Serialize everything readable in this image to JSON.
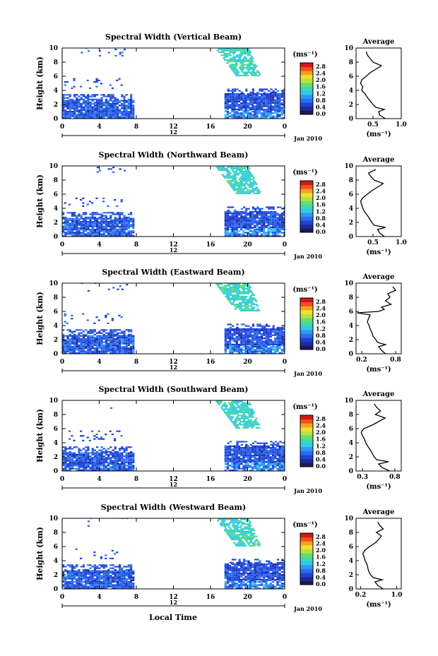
{
  "figure": {
    "xlabel": "Local Time",
    "ylabel": "Height (km)",
    "date_label": "Jan 2010",
    "mid_label": "12",
    "colorbar_unit": "(ms⁻¹)",
    "average_title": "Average",
    "average_xlabel": "(ms⁻¹)"
  },
  "chart_data": [
    {
      "type": "heatmap",
      "title": "Spectral Width (Vertical Beam)",
      "x_ticks": [
        "0",
        "4",
        "8",
        "12",
        "16",
        "20",
        "0"
      ],
      "y_ticks": [
        "0",
        "2",
        "4",
        "6",
        "8",
        "10"
      ],
      "xlim": [
        0,
        24
      ],
      "ylim": [
        0,
        10
      ],
      "colorbar_ticks": [
        "0.0",
        "0.4",
        "0.8",
        "1.2",
        "1.6",
        "2.0",
        "2.4",
        "2.8"
      ],
      "colorbar_range": [
        0,
        3.0
      ],
      "profile": {
        "x_ticks": [
          "0.5",
          "1.0"
        ],
        "xlim": [
          0.2,
          1.0
        ],
        "height": [
          0.0,
          0.5,
          1.0,
          1.3,
          1.6,
          2.0,
          2.5,
          3.0,
          3.5,
          4.0,
          4.5,
          5.0,
          5.5,
          6.0,
          6.5,
          7.0,
          7.5,
          8.0,
          8.5,
          9.0,
          9.5
        ],
        "value": [
          0.72,
          0.62,
          0.6,
          0.7,
          0.55,
          0.5,
          0.45,
          0.4,
          0.36,
          0.3,
          0.32,
          0.28,
          0.3,
          0.38,
          0.45,
          0.55,
          0.65,
          0.5,
          0.45,
          0.4,
          0.38
        ]
      }
    },
    {
      "type": "heatmap",
      "title": "Spectral Width (Northward Beam)",
      "x_ticks": [
        "0",
        "4",
        "8",
        "12",
        "16",
        "20",
        "0"
      ],
      "y_ticks": [
        "0",
        "2",
        "4",
        "6",
        "8",
        "10"
      ],
      "xlim": [
        0,
        24
      ],
      "ylim": [
        0,
        10
      ],
      "colorbar_ticks": [
        "0.0",
        "0.4",
        "0.8",
        "1.2",
        "1.6",
        "2.0",
        "2.4",
        "2.8"
      ],
      "colorbar_range": [
        0,
        3.0
      ],
      "profile": {
        "x_ticks": [
          "0.5",
          "1.0"
        ],
        "xlim": [
          0.2,
          1.0
        ],
        "height": [
          0.0,
          0.5,
          1.0,
          1.3,
          1.6,
          2.0,
          2.5,
          3.0,
          3.5,
          4.0,
          4.5,
          5.0,
          5.5,
          6.0,
          6.5,
          7.0,
          7.5,
          8.0,
          8.5,
          9.0,
          9.5
        ],
        "value": [
          0.7,
          0.62,
          0.58,
          0.72,
          0.52,
          0.48,
          0.44,
          0.4,
          0.35,
          0.32,
          0.3,
          0.28,
          0.32,
          0.4,
          0.48,
          0.58,
          0.68,
          0.52,
          0.46,
          0.42,
          0.55
        ]
      }
    },
    {
      "type": "heatmap",
      "title": "Spectral Width (Eastward Beam)",
      "x_ticks": [
        "0",
        "4",
        "8",
        "12",
        "16",
        "20",
        "0"
      ],
      "y_ticks": [
        "0",
        "2",
        "4",
        "6",
        "8",
        "10"
      ],
      "xlim": [
        0,
        24
      ],
      "ylim": [
        0,
        10
      ],
      "colorbar_ticks": [
        "0.0",
        "0.4",
        "0.8",
        "1.2",
        "1.6",
        "2.0",
        "2.4",
        "2.8"
      ],
      "colorbar_range": [
        0,
        3.0
      ],
      "profile": {
        "x_ticks": [
          "0.2",
          "0.8"
        ],
        "xlim": [
          0.1,
          0.9
        ],
        "height": [
          0.0,
          0.5,
          1.0,
          1.3,
          1.6,
          2.0,
          2.5,
          3.0,
          3.5,
          4.0,
          4.5,
          5.0,
          5.5,
          5.8,
          6.0,
          6.3,
          6.6,
          7.0,
          7.5,
          8.0,
          8.5,
          9.0,
          9.5
        ],
        "value": [
          0.62,
          0.55,
          0.5,
          0.62,
          0.48,
          0.45,
          0.4,
          0.38,
          0.35,
          0.33,
          0.3,
          0.32,
          0.35,
          0.12,
          0.5,
          0.6,
          0.55,
          0.72,
          0.62,
          0.7,
          0.66,
          0.8,
          0.75
        ]
      }
    },
    {
      "type": "heatmap",
      "title": "Spectral Width (Southward Beam)",
      "x_ticks": [
        "0",
        "4",
        "8",
        "12",
        "16",
        "20",
        "0"
      ],
      "y_ticks": [
        "0",
        "2",
        "4",
        "6",
        "8",
        "10"
      ],
      "xlim": [
        0,
        24
      ],
      "ylim": [
        0,
        10
      ],
      "colorbar_ticks": [
        "0.0",
        "0.4",
        "0.8",
        "1.2",
        "1.6",
        "2.0",
        "2.4",
        "2.8"
      ],
      "colorbar_range": [
        0,
        3.0
      ],
      "profile": {
        "x_ticks": [
          "0.3",
          "0.8"
        ],
        "xlim": [
          0.2,
          0.9
        ],
        "height": [
          0.0,
          0.5,
          1.0,
          1.3,
          1.6,
          2.0,
          2.5,
          3.0,
          3.5,
          4.0,
          4.5,
          5.0,
          5.5,
          6.0,
          6.5,
          7.0,
          7.5,
          8.0,
          8.5,
          9.0,
          9.5
        ],
        "value": [
          0.72,
          0.6,
          0.55,
          0.7,
          0.52,
          0.48,
          0.45,
          0.42,
          0.38,
          0.35,
          0.33,
          0.3,
          0.28,
          0.32,
          0.45,
          0.55,
          0.65,
          0.5,
          0.58,
          0.52,
          0.48
        ]
      }
    },
    {
      "type": "heatmap",
      "title": "Spectral Width (Westward Beam)",
      "x_ticks": [
        "0",
        "4",
        "8",
        "12",
        "16",
        "20",
        "0"
      ],
      "y_ticks": [
        "0",
        "2",
        "4",
        "6",
        "8",
        "10"
      ],
      "xlim": [
        0,
        24
      ],
      "ylim": [
        0,
        10
      ],
      "colorbar_ticks": [
        "0.0",
        "0.4",
        "0.8",
        "1.2",
        "1.6",
        "2.0",
        "2.4",
        "2.8"
      ],
      "colorbar_range": [
        0,
        3.0
      ],
      "profile": {
        "x_ticks": [
          "0.2",
          "1.0"
        ],
        "xlim": [
          0.1,
          1.1
        ],
        "height": [
          0.0,
          0.5,
          1.0,
          1.3,
          1.6,
          2.0,
          2.5,
          3.0,
          3.5,
          4.0,
          4.5,
          5.0,
          5.5,
          6.0,
          6.5,
          7.0,
          7.5,
          8.0,
          8.5,
          9.0,
          9.5
        ],
        "value": [
          0.7,
          0.58,
          0.52,
          0.68,
          0.48,
          0.42,
          0.38,
          0.36,
          0.34,
          0.3,
          0.28,
          0.25,
          0.3,
          0.4,
          0.52,
          0.6,
          0.66,
          0.55,
          0.7,
          0.62,
          0.58
        ]
      }
    }
  ]
}
